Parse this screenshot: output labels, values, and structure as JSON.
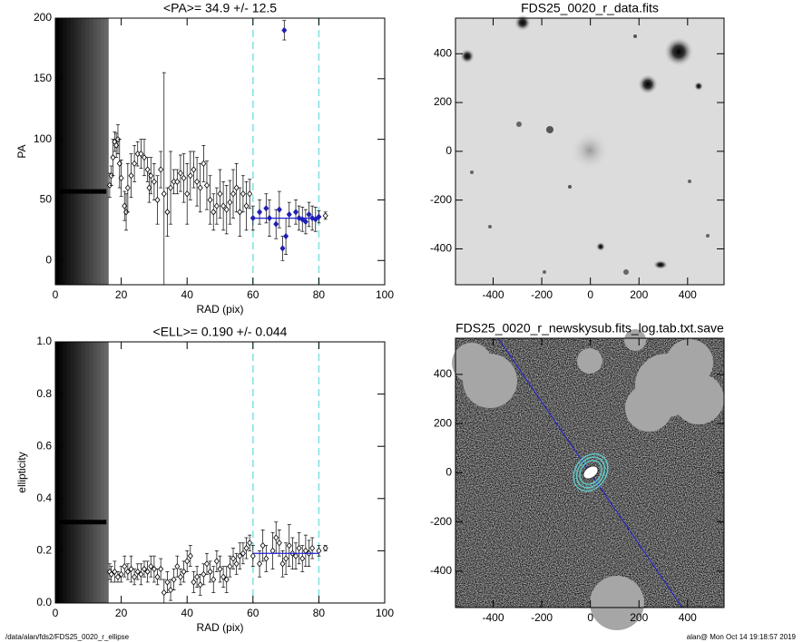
{
  "chart_data": [
    {
      "type": "errorbar",
      "title": "<PA>=  34.9 +/-  12.5",
      "x_label": "RAD (pix)",
      "y_label": "PA",
      "xlim": [
        0,
        100
      ],
      "xticks": [
        0,
        20,
        40,
        60,
        80,
        100
      ],
      "ylim": [
        -20,
        200
      ],
      "yticks": [
        0,
        50,
        100,
        150,
        200
      ],
      "x": [
        16.5,
        17,
        17.5,
        18,
        18.5,
        19,
        19.5,
        20,
        21,
        21.5,
        22,
        23,
        24,
        25,
        26,
        27,
        28,
        28.5,
        29,
        30,
        31,
        32,
        33,
        34,
        35,
        36,
        37,
        38,
        39,
        40,
        41,
        42,
        43,
        44,
        45,
        46,
        47,
        48,
        49,
        50,
        51,
        52,
        53,
        54,
        55,
        56,
        57,
        58,
        59,
        60,
        62,
        64,
        65,
        67,
        68,
        69,
        69.5,
        70,
        71,
        73,
        74,
        75,
        76,
        77,
        78,
        79,
        80,
        82
      ],
      "values": [
        62,
        70,
        85,
        98,
        95,
        100,
        80,
        68,
        45,
        40,
        60,
        70,
        80,
        88,
        88,
        85,
        75,
        60,
        70,
        65,
        50,
        75,
        55,
        40,
        60,
        65,
        65,
        72,
        68,
        55,
        70,
        75,
        65,
        60,
        80,
        62,
        50,
        40,
        45,
        55,
        45,
        42,
        48,
        55,
        60,
        40,
        55,
        45,
        55,
        35,
        40,
        43,
        35,
        30,
        42,
        10,
        190,
        20,
        38,
        40,
        35,
        34,
        32,
        38,
        35,
        34,
        36,
        37
      ],
      "errors": [
        10,
        8,
        15,
        8,
        10,
        12,
        20,
        15,
        12,
        15,
        20,
        18,
        15,
        10,
        12,
        15,
        10,
        12,
        15,
        15,
        20,
        15,
        100,
        20,
        30,
        10,
        10,
        15,
        20,
        25,
        20,
        15,
        20,
        20,
        15,
        20,
        20,
        15,
        15,
        20,
        20,
        20,
        18,
        20,
        20,
        20,
        15,
        20,
        12,
        10,
        10,
        12,
        15,
        12,
        15,
        10,
        8,
        15,
        10,
        10,
        10,
        10,
        10,
        10,
        10,
        10,
        5,
        3
      ],
      "color": "#000000",
      "highlight_color": "#2020b0",
      "fit_color": "#2020d0",
      "range_color": "#80e0e0",
      "fit_range": [
        60,
        80
      ],
      "fit_value": 34.9,
      "inner_value": 57,
      "inner_range": [
        0,
        15.5
      ]
    },
    {
      "type": "image",
      "title": "FDS25_0020_r_data.fits",
      "xlim": [
        -555,
        550
      ],
      "xticks": [
        -400,
        -200,
        0,
        200,
        400
      ],
      "ylim": [
        -547,
        546
      ],
      "yticks": [
        -400,
        -200,
        0,
        200,
        400
      ]
    },
    {
      "type": "errorbar",
      "title": "<ELL>= 0.190 +/-  0.044",
      "x_label": "RAD (pix)",
      "y_label": "ellipticity",
      "xlim": [
        0,
        100
      ],
      "xticks": [
        0,
        20,
        40,
        60,
        80,
        100
      ],
      "ylim": [
        0,
        1
      ],
      "yticks": [
        {
          "value": 0,
          "label": "0.0"
        },
        0.2,
        0.4,
        0.6,
        0.8,
        {
          "value": 1,
          "label": "1.0"
        }
      ],
      "x": [
        16.5,
        17,
        18,
        19,
        20,
        21,
        22,
        23,
        24,
        25,
        26,
        27,
        28,
        29,
        30,
        31,
        32,
        33,
        34,
        35,
        36,
        37,
        38,
        39,
        40,
        41,
        42,
        43,
        44,
        45,
        46,
        47,
        48,
        49,
        50,
        51,
        52,
        53,
        54,
        55,
        56,
        57,
        58,
        59,
        60,
        62,
        63,
        64,
        66,
        67,
        68,
        69,
        70,
        71,
        72,
        73,
        74,
        75,
        76,
        77,
        78,
        80,
        82
      ],
      "values": [
        0.12,
        0.11,
        0.12,
        0.1,
        0.11,
        0.14,
        0.12,
        0.13,
        0.1,
        0.12,
        0.11,
        0.13,
        0.12,
        0.14,
        0.13,
        0.1,
        0.13,
        0.04,
        0.08,
        0.05,
        0.09,
        0.14,
        0.1,
        0.12,
        0.16,
        0.18,
        0.08,
        0.1,
        0.07,
        0.11,
        0.15,
        0.12,
        0.09,
        0.16,
        0.13,
        0.1,
        0.09,
        0.14,
        0.17,
        0.15,
        0.18,
        0.19,
        0.21,
        0.23,
        0.18,
        0.15,
        0.22,
        0.17,
        0.2,
        0.25,
        0.23,
        0.15,
        0.17,
        0.22,
        0.19,
        0.18,
        0.21,
        0.17,
        0.2,
        0.19,
        0.21,
        0.2,
        0.21
      ],
      "errors": [
        0.03,
        0.03,
        0.04,
        0.02,
        0.03,
        0.04,
        0.03,
        0.05,
        0.03,
        0.03,
        0.04,
        0.03,
        0.04,
        0.04,
        0.05,
        0.03,
        0.04,
        0.05,
        0.04,
        0.04,
        0.04,
        0.04,
        0.03,
        0.04,
        0.04,
        0.04,
        0.04,
        0.04,
        0.04,
        0.04,
        0.04,
        0.04,
        0.05,
        0.04,
        0.05,
        0.04,
        0.05,
        0.04,
        0.04,
        0.04,
        0.05,
        0.04,
        0.04,
        0.03,
        0.04,
        0.05,
        0.06,
        0.05,
        0.07,
        0.06,
        0.05,
        0.05,
        0.06,
        0.08,
        0.06,
        0.05,
        0.06,
        0.05,
        0.06,
        0.05,
        0.04,
        0.02,
        0.01
      ],
      "color": "#000000",
      "highlight_color": "#000000",
      "fit_color": "#2020d0",
      "range_color": "#80e0e0",
      "fit_range": [
        60,
        80
      ],
      "fit_value": 0.19,
      "inner_value": 0.31,
      "inner_range": [
        0,
        15.5
      ]
    },
    {
      "type": "image",
      "title": "FDS25_0020_r_newskysub.fits_log.tab.txt.save",
      "xlim": [
        -555,
        550
      ],
      "xticks": [
        -400,
        -200,
        0,
        200,
        400
      ],
      "ylim": [
        -548,
        547
      ],
      "yticks": [
        -400,
        -200,
        0,
        200,
        400
      ]
    }
  ],
  "footer": {
    "left": "/data/alan/fds2/FDS25_0020_r_ellipse",
    "right": "alan@  Mon Oct 14 19:18:57 2019"
  }
}
